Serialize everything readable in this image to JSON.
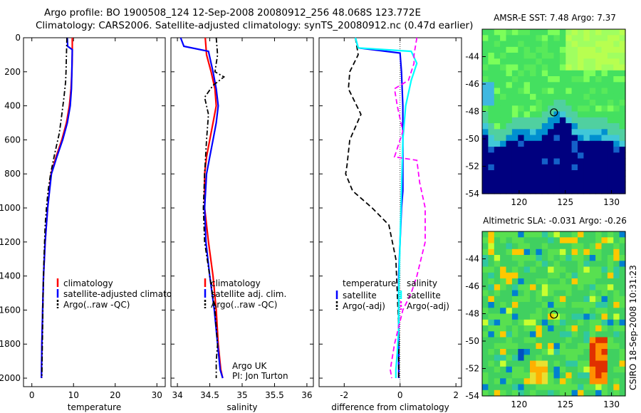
{
  "header": {
    "line1": "Argo profile: BO 1900508_124 12-Sep-2008 20080912_256 48.068S 123.772E",
    "line2": "Climatology: CARS2006. Satellite-adjusted climatology: synTS_20080912.nc (0.47d earlier)"
  },
  "colors": {
    "climatology": "#ff0000",
    "satellite": "#0000ff",
    "argo": "#000000",
    "sat_salinity": "#00ffff",
    "argo_salinity": "#ff00ff"
  },
  "chart_data": [
    {
      "type": "line",
      "id": "temperature",
      "xlabel": "temperature",
      "xlim": [
        -2,
        32
      ],
      "xticks": [
        "0",
        "10",
        "20",
        "30"
      ],
      "ylim": [
        0,
        2050
      ],
      "yticks": [
        "0",
        "200",
        "400",
        "600",
        "800",
        "1000",
        "1200",
        "1400",
        "1600",
        "1800",
        "2000"
      ],
      "series": [
        {
          "name": "climatology",
          "style": "solid",
          "color": "#ff0000",
          "x": [
            9.7,
            9.7,
            9.7,
            9.6,
            9.4,
            9.0,
            8.3,
            7.2,
            5.8,
            4.6,
            3.8,
            3.2,
            2.8,
            2.6,
            2.4,
            2.3
          ],
          "y": [
            0,
            50,
            100,
            200,
            300,
            400,
            500,
            600,
            700,
            800,
            1000,
            1200,
            1400,
            1600,
            1800,
            2000
          ]
        },
        {
          "name": "satellite-adjusted climatology",
          "style": "solid",
          "color": "#0000ff",
          "x": [
            8.5,
            8.6,
            9.7,
            9.6,
            9.5,
            9.2,
            8.5,
            7.4,
            6.0,
            4.7,
            3.8,
            3.2,
            2.8,
            2.6,
            2.4,
            2.3
          ],
          "y": [
            0,
            50,
            70,
            200,
            300,
            400,
            500,
            600,
            700,
            800,
            1000,
            1200,
            1400,
            1600,
            1800,
            2000
          ]
        },
        {
          "name": "Argo(..raw -QC)",
          "style": "dashdot",
          "color": "#000000",
          "x": [
            8.4,
            8.3,
            8.2,
            8.1,
            7.7,
            7.2,
            6.6,
            5.5,
            4.5,
            3.9,
            3.5,
            3.2,
            2.9,
            2.7,
            2.6,
            2.5,
            2.4
          ],
          "y": [
            0,
            100,
            200,
            260,
            350,
            450,
            560,
            680,
            800,
            900,
            1000,
            1100,
            1300,
            1500,
            1700,
            1850,
            2000
          ]
        }
      ],
      "legend": [
        "climatology",
        "satellite-adjusted climatology",
        "Argo(..raw -QC)"
      ]
    },
    {
      "type": "line",
      "id": "salinity",
      "xlabel": "salinity",
      "xlim": [
        33.9,
        36.1
      ],
      "xticks": [
        "34",
        "34.5",
        "35",
        "35.5",
        "36"
      ],
      "ylim": [
        0,
        2050
      ],
      "series": [
        {
          "name": "climatology",
          "style": "solid",
          "color": "#ff0000",
          "x": [
            34.43,
            34.45,
            34.52,
            34.58,
            34.6,
            34.55,
            34.5,
            34.45,
            34.42,
            34.42,
            34.48,
            34.55,
            34.6,
            34.63,
            34.67,
            34.7
          ],
          "y": [
            0,
            100,
            200,
            300,
            400,
            500,
            600,
            700,
            800,
            1000,
            1200,
            1400,
            1600,
            1800,
            1950,
            2000
          ]
        },
        {
          "name": "satellite adj. clim.",
          "style": "solid",
          "color": "#0000ff",
          "x": [
            34.05,
            34.1,
            34.48,
            34.55,
            34.6,
            34.63,
            34.6,
            34.55,
            34.5,
            34.45,
            34.42,
            34.44,
            34.5,
            34.57,
            34.62,
            34.66,
            34.7
          ],
          "y": [
            0,
            50,
            80,
            200,
            300,
            400,
            500,
            600,
            700,
            800,
            1000,
            1200,
            1400,
            1600,
            1800,
            1950,
            2000
          ]
        },
        {
          "name": "Argo(..raw -QC)",
          "style": "dashdot",
          "color": "#000000",
          "x": [
            34.6,
            34.62,
            34.58,
            34.72,
            34.55,
            34.42,
            34.48,
            34.45,
            34.42,
            34.4,
            34.42,
            34.5,
            34.58,
            34.62,
            34.6,
            34.6
          ],
          "y": [
            0,
            100,
            200,
            230,
            280,
            350,
            450,
            600,
            800,
            1000,
            1200,
            1400,
            1600,
            1800,
            1900,
            2000
          ]
        }
      ],
      "legend": [
        "climatology",
        "satellite adj. clim.",
        "Argo(..raw -QC)"
      ],
      "annotation": [
        "Argo UK",
        "PI: Jon Turton"
      ]
    },
    {
      "type": "line",
      "id": "difference",
      "xlabel": "difference from climatology",
      "xlim": [
        -2.9,
        2.2
      ],
      "xticks": [
        "-2",
        "0",
        "2"
      ],
      "ylim": [
        0,
        2050
      ],
      "series": [
        {
          "name": "temperature satellite",
          "style": "solid",
          "color": "#0000ff",
          "x": [
            -1.6,
            -1.5,
            0.0,
            0.05,
            0.1,
            0.1,
            0.1,
            0.1,
            0.05,
            0.0,
            -0.05,
            -0.05,
            -0.05,
            -0.05,
            -0.05
          ],
          "y": [
            0,
            60,
            90,
            200,
            400,
            600,
            800,
            900,
            1000,
            1200,
            1400,
            1600,
            1800,
            1950,
            2000
          ]
        },
        {
          "name": "temperature Argo(-adj)",
          "style": "dashed",
          "color": "#000000",
          "x": [
            -1.6,
            -1.5,
            -1.8,
            -1.85,
            -1.4,
            -1.8,
            -1.9,
            -1.95,
            -1.7,
            -1.0,
            -0.4,
            -0.15,
            -0.1,
            -0.05,
            -0.05,
            -0.05
          ],
          "y": [
            0,
            100,
            200,
            300,
            450,
            600,
            750,
            800,
            900,
            1000,
            1100,
            1300,
            1500,
            1700,
            1900,
            2000
          ]
        },
        {
          "name": "salinity satellite",
          "style": "solid",
          "color": "#00ffff",
          "x": [
            -1.6,
            -1.5,
            0.4,
            0.6,
            0.4,
            0.2,
            0.1,
            0.05,
            0.0,
            -0.05,
            -0.05,
            -0.1,
            -0.15,
            -0.15
          ],
          "y": [
            0,
            60,
            80,
            150,
            250,
            400,
            600,
            900,
            1200,
            1500,
            1700,
            1850,
            1950,
            2000
          ]
        },
        {
          "name": "salinity Argo(-adj)",
          "style": "dashed",
          "color": "#ff00ff",
          "x": [
            0.6,
            0.5,
            0.5,
            0.3,
            -0.2,
            -0.1,
            0.1,
            -0.2,
            0.6,
            0.7,
            0.9,
            0.9,
            0.6,
            0.4,
            0.1,
            -0.2,
            -0.35,
            -0.3
          ],
          "y": [
            0,
            100,
            150,
            250,
            300,
            400,
            550,
            700,
            720,
            850,
            1000,
            1200,
            1400,
            1500,
            1600,
            1800,
            1950,
            2000
          ]
        }
      ],
      "legend_left": {
        "heading": "temperature",
        "items": [
          "satellite",
          "Argo(-adj)"
        ]
      },
      "legend_right": {
        "heading": "salinity",
        "items": [
          "satellite",
          "Argo(-adj)"
        ]
      }
    },
    {
      "type": "heatmap",
      "id": "sst",
      "title": "AMSR-E SST: 7.48 Argo: 7.37",
      "xlim": [
        116,
        131.5
      ],
      "ylim": [
        -54,
        -42
      ],
      "xticks": [
        "120",
        "125",
        "130"
      ],
      "yticks": [
        "-44",
        "-46",
        "-48",
        "-50",
        "-52",
        "-54"
      ],
      "marker": [
        123.772,
        -48.068
      ]
    },
    {
      "type": "heatmap",
      "id": "sla",
      "title": "Altimetric SLA: -0.031 Argo: -0.26",
      "xlim": [
        116,
        131.5
      ],
      "ylim": [
        -54,
        -42
      ],
      "xticks": [
        "120",
        "125",
        "130"
      ],
      "yticks": [
        "-44",
        "-46",
        "-48",
        "-50",
        "-52",
        "-54"
      ],
      "marker": [
        123.772,
        -48.068
      ]
    }
  ],
  "stamp": "CSIRO 18-Sep-2008 10:31:23"
}
